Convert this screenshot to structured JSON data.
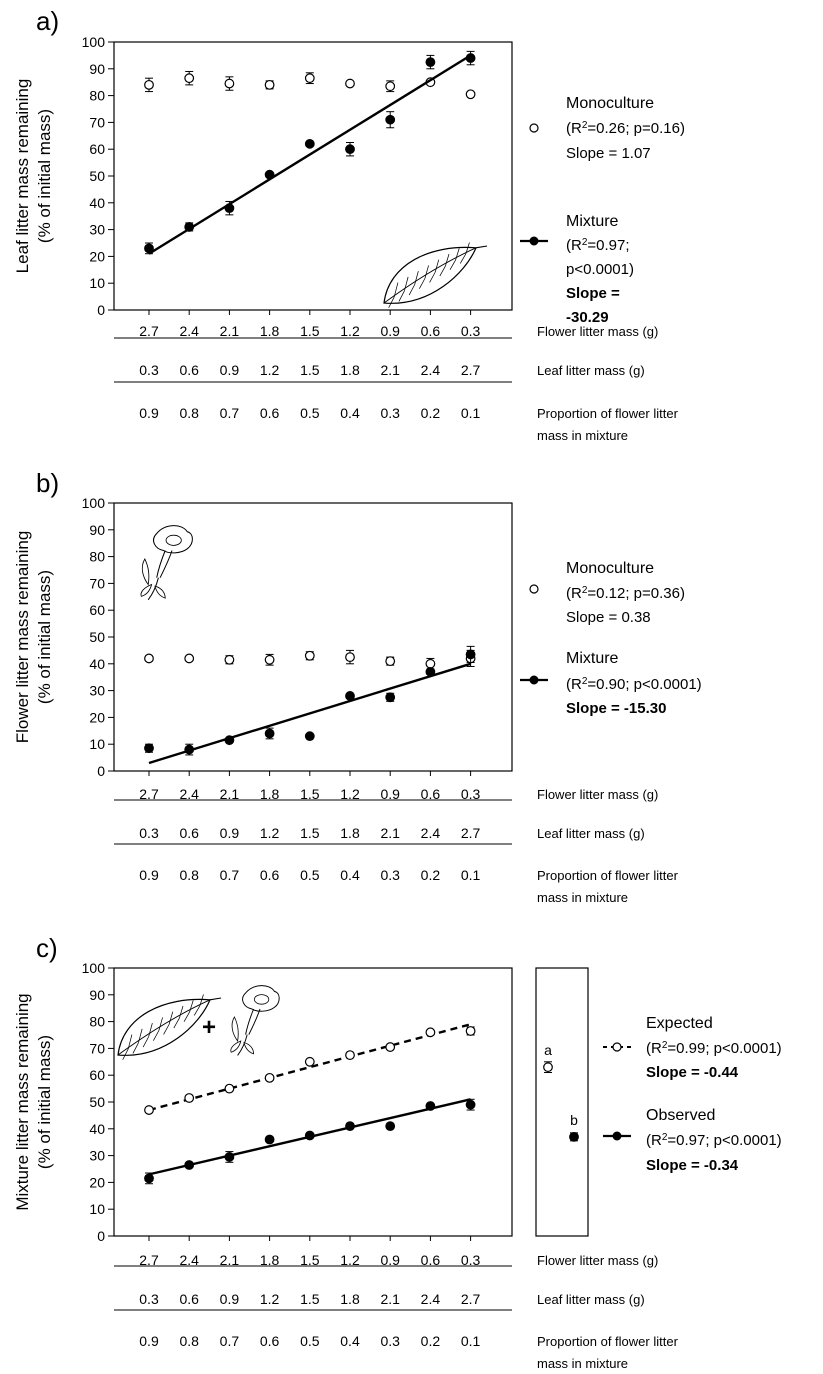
{
  "chart_data": [
    {
      "type": "scatter",
      "panel_label": "a)",
      "ylabel": "Leaf litter mass remaining\n(% of initial mass)",
      "ylim": [
        0,
        100
      ],
      "yticks": [
        0,
        10,
        20,
        30,
        40,
        50,
        60,
        70,
        80,
        90,
        100
      ],
      "x_axes": [
        {
          "label": "Flower litter mass (g)",
          "ticks": [
            "2.7",
            "2.4",
            "2.1",
            "1.8",
            "1.5",
            "1.2",
            "0.9",
            "0.6",
            "0.3"
          ]
        },
        {
          "label": "Leaf litter mass (g)",
          "ticks": [
            "0.3",
            "0.6",
            "0.9",
            "1.2",
            "1.5",
            "1.8",
            "2.1",
            "2.4",
            "2.7"
          ]
        },
        {
          "label": "Proportion of flower litter\nmass in mixture",
          "ticks": [
            "0.9",
            "0.8",
            "0.7",
            "0.6",
            "0.5",
            "0.4",
            "0.3",
            "0.2",
            "0.1"
          ]
        }
      ],
      "series": [
        {
          "name": "Monoculture",
          "marker": "open-circle",
          "values": [
            84,
            86.5,
            84.5,
            84,
            86.5,
            84.5,
            83.5,
            85,
            80.5
          ],
          "errors": [
            2.5,
            2.5,
            2.5,
            1.5,
            2,
            0,
            2,
            0,
            0
          ],
          "fit": null,
          "legend_lines": [
            "Monoculture",
            "(R²=0.26; p=0.16)",
            "Slope = 1.07"
          ]
        },
        {
          "name": "Mixture",
          "marker": "filled-circle",
          "values": [
            23,
            31,
            38,
            50.5,
            62,
            60,
            71,
            92.5,
            94
          ],
          "errors": [
            2,
            1.5,
            2.5,
            0,
            0,
            2.5,
            3,
            2.5,
            2.5
          ],
          "fit": {
            "style": "solid",
            "start": 21,
            "end": 95
          },
          "legend_lines": [
            "Mixture",
            "(R²=0.97;",
            "p<0.0001)",
            "Slope =",
            "-30.29"
          ]
        }
      ]
    },
    {
      "type": "scatter",
      "panel_label": "b)",
      "ylabel": "Flower litter mass remaining\n(% of initial mass)",
      "ylim": [
        0,
        100
      ],
      "yticks": [
        0,
        10,
        20,
        30,
        40,
        50,
        60,
        70,
        80,
        90,
        100
      ],
      "x_axes": [
        {
          "label": "Flower litter mass (g)",
          "ticks": [
            "2.7",
            "2.4",
            "2.1",
            "1.8",
            "1.5",
            "1.2",
            "0.9",
            "0.6",
            "0.3"
          ]
        },
        {
          "label": "Leaf litter mass (g)",
          "ticks": [
            "0.3",
            "0.6",
            "0.9",
            "1.2",
            "1.5",
            "1.8",
            "2.1",
            "2.4",
            "2.7"
          ]
        },
        {
          "label": "Proportion of flower litter\nmass in mixture",
          "ticks": [
            "0.9",
            "0.8",
            "0.7",
            "0.6",
            "0.5",
            "0.4",
            "0.3",
            "0.2",
            "0.1"
          ]
        }
      ],
      "series": [
        {
          "name": "Monoculture",
          "marker": "open-circle",
          "values": [
            42,
            42,
            41.5,
            41.5,
            43,
            42.5,
            41,
            40,
            42
          ],
          "errors": [
            0,
            0,
            1.5,
            2,
            1.5,
            2.5,
            1.5,
            2,
            3
          ],
          "fit": null,
          "legend_lines": [
            "Monoculture",
            "(R²=0.12; p=0.36)",
            "Slope = 0.38"
          ]
        },
        {
          "name": "Mixture",
          "marker": "filled-circle",
          "values": [
            8.5,
            8,
            11.5,
            14,
            13,
            28,
            27.5,
            37,
            43.5
          ],
          "errors": [
            1.5,
            2,
            0,
            2,
            0,
            0,
            1.5,
            0,
            3
          ],
          "fit": {
            "style": "solid",
            "start": 3,
            "end": 40
          },
          "legend_lines": [
            "Mixture",
            "(R²=0.90; p<0.0001)",
            "Slope = -15.30"
          ]
        }
      ]
    },
    {
      "type": "scatter",
      "panel_label": "c)",
      "ylabel": "Mixture litter mass remaining\n(% of initial mass)",
      "ylim": [
        0,
        100
      ],
      "yticks": [
        0,
        10,
        20,
        30,
        40,
        50,
        60,
        70,
        80,
        90,
        100
      ],
      "x_axes": [
        {
          "label": "Flower litter mass (g)",
          "ticks": [
            "2.7",
            "2.4",
            "2.1",
            "1.8",
            "1.5",
            "1.2",
            "0.9",
            "0.6",
            "0.3"
          ]
        },
        {
          "label": "Leaf litter mass (g)",
          "ticks": [
            "0.3",
            "0.6",
            "0.9",
            "1.2",
            "1.5",
            "1.8",
            "2.1",
            "2.4",
            "2.7"
          ]
        },
        {
          "label": "Proportion of flower litter\nmass in mixture",
          "ticks": [
            "0.9",
            "0.8",
            "0.7",
            "0.6",
            "0.5",
            "0.4",
            "0.3",
            "0.2",
            "0.1"
          ]
        }
      ],
      "series": [
        {
          "name": "Expected",
          "marker": "open-circle",
          "values": [
            47,
            51.5,
            55,
            59,
            65,
            67.5,
            70.5,
            76,
            76.5
          ],
          "errors": [
            0,
            0,
            0,
            0,
            0,
            0,
            0,
            0,
            1.5
          ],
          "fit": {
            "style": "dashed",
            "start": 47,
            "end": 79
          },
          "legend_lines": [
            "Expected",
            "(R²=0.99; p<0.0001)",
            "Slope = -0.44"
          ]
        },
        {
          "name": "Observed",
          "marker": "filled-circle",
          "values": [
            21.5,
            26.5,
            29.5,
            36,
            37.5,
            41,
            41,
            48.5,
            49
          ],
          "errors": [
            2,
            0,
            2,
            0,
            0,
            0,
            0,
            0,
            2
          ],
          "fit": {
            "style": "solid",
            "start": 23,
            "end": 51
          },
          "legend_lines": [
            "Observed",
            "(R²=0.97; p<0.0001)",
            "Slope = -0.34"
          ]
        }
      ],
      "comparison_box": {
        "points": [
          {
            "series": "Expected",
            "value": 63,
            "error": 2,
            "letter": "a"
          },
          {
            "series": "Observed",
            "value": 37,
            "error": 1.5,
            "letter": "b"
          }
        ]
      }
    }
  ],
  "illustrations": [
    "leaf-illustration",
    "flower-illustration"
  ],
  "colors": {
    "ink": "#000000",
    "background": "#ffffff"
  }
}
